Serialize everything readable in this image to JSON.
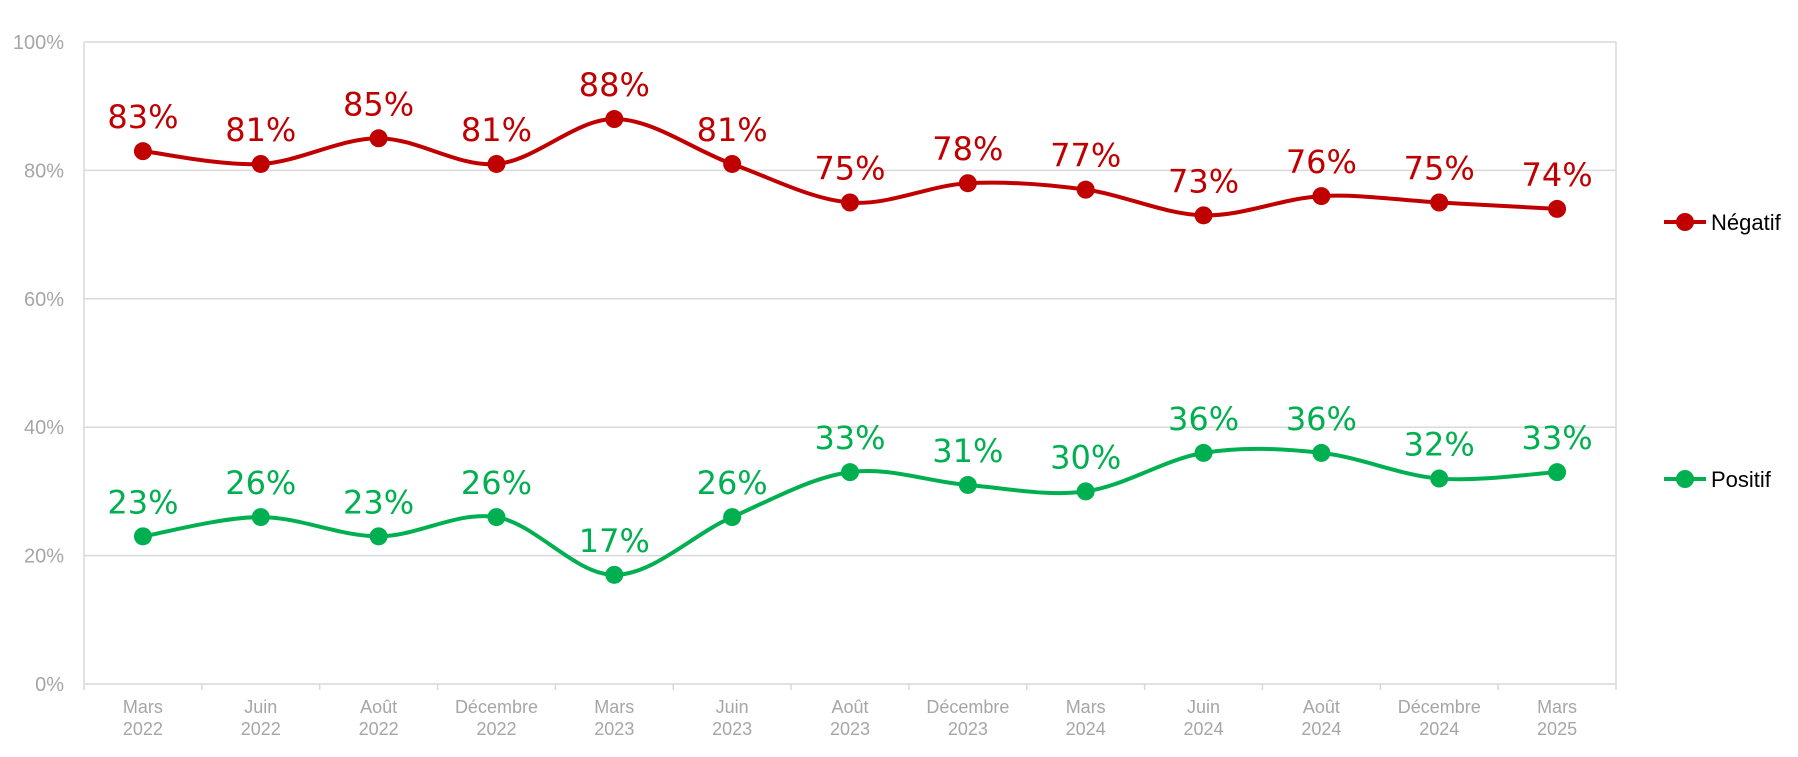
{
  "chart_data": {
    "type": "line",
    "categories": [
      [
        "Mars",
        "2022"
      ],
      [
        "Juin",
        "2022"
      ],
      [
        "Août",
        "2022"
      ],
      [
        "Décembre",
        "2022"
      ],
      [
        "Mars",
        "2023"
      ],
      [
        "Juin",
        "2023"
      ],
      [
        "Août",
        "2023"
      ],
      [
        "Décembre",
        "2023"
      ],
      [
        "Mars",
        "2024"
      ],
      [
        "Juin",
        "2024"
      ],
      [
        "Août",
        "2024"
      ],
      [
        "Décembre",
        "2024"
      ],
      [
        "Mars",
        "2025"
      ]
    ],
    "series": [
      {
        "name": "Négatif",
        "color": "#c00000",
        "values": [
          83,
          81,
          85,
          81,
          88,
          81,
          75,
          78,
          77,
          73,
          76,
          75,
          74
        ],
        "labels": [
          "83%",
          "81%",
          "85%",
          "81%",
          "88%",
          "81%",
          "75%",
          "78%",
          "77%",
          "73%",
          "76%",
          "75%",
          "74%"
        ]
      },
      {
        "name": "Positif",
        "color": "#00b050",
        "values": [
          23,
          26,
          23,
          26,
          17,
          26,
          33,
          31,
          30,
          36,
          36,
          32,
          33
        ],
        "labels": [
          "23%",
          "26%",
          "23%",
          "26%",
          "17%",
          "26%",
          "33%",
          "31%",
          "30%",
          "36%",
          "36%",
          "32%",
          "33%"
        ]
      }
    ],
    "yticks": [
      "0%",
      "20%",
      "40%",
      "60%",
      "80%",
      "100%"
    ],
    "ylim": [
      0,
      100
    ],
    "grid": true,
    "legend_position": "right",
    "smooth": true
  }
}
